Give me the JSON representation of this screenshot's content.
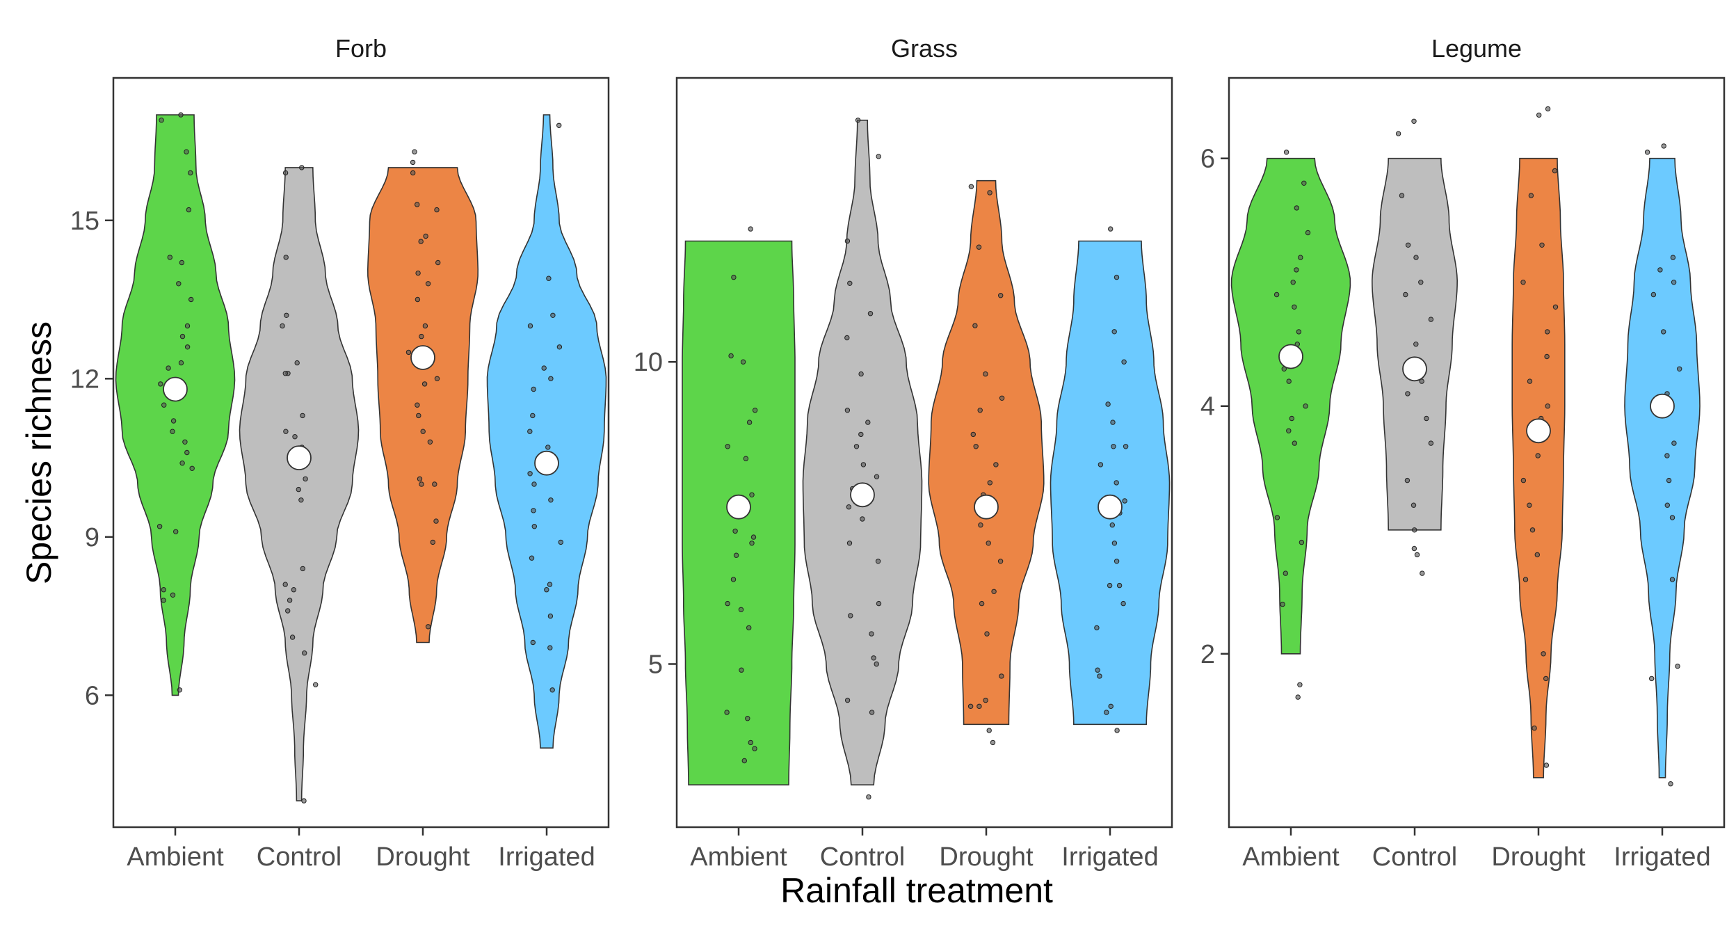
{
  "chart_data": {
    "type": "violin",
    "x_label": "Rainfall treatment",
    "y_label": "Species richness",
    "categories": [
      "Ambient",
      "Control",
      "Drought",
      "Irrigated"
    ],
    "colors": {
      "Ambient": "#5dd54a",
      "Control": "#bebebe",
      "Drought": "#ec8545",
      "Irrigated": "#6ccaff"
    },
    "panels": [
      {
        "title": "Forb",
        "ylim": [
          3.5,
          17.7
        ],
        "yticks": [
          6,
          9,
          12,
          15
        ],
        "groups": [
          {
            "category": "Ambient",
            "min": 6,
            "max": 17,
            "mean": 11.8,
            "density": [
              [
                6,
                0.05
              ],
              [
                7,
                0.14
              ],
              [
                8,
                0.24
              ],
              [
                9,
                0.38
              ],
              [
                10,
                0.6
              ],
              [
                11,
                0.85
              ],
              [
                12,
                0.95
              ],
              [
                13,
                0.85
              ],
              [
                14,
                0.65
              ],
              [
                15,
                0.48
              ],
              [
                16,
                0.33
              ],
              [
                17,
                0.3
              ]
            ],
            "points": [
              6.1,
              7.8,
              7.9,
              8.0,
              9.1,
              9.2,
              10.3,
              10.4,
              10.6,
              10.8,
              11.0,
              11.2,
              11.5,
              11.9,
              12.2,
              12.3,
              12.6,
              12.8,
              13.0,
              13.5,
              13.8,
              14.2,
              14.3,
              15.2,
              15.9,
              16.3,
              16.9,
              17.0
            ]
          },
          {
            "category": "Control",
            "min": 4,
            "max": 16,
            "mean": 10.5,
            "density": [
              [
                4,
                0.04
              ],
              [
                5,
                0.07
              ],
              [
                6,
                0.12
              ],
              [
                7,
                0.22
              ],
              [
                8,
                0.38
              ],
              [
                9,
                0.6
              ],
              [
                10,
                0.85
              ],
              [
                11,
                0.95
              ],
              [
                12,
                0.85
              ],
              [
                13,
                0.62
              ],
              [
                14,
                0.42
              ],
              [
                15,
                0.26
              ],
              [
                16,
                0.22
              ]
            ],
            "points": [
              4.0,
              6.2,
              6.8,
              7.1,
              7.6,
              7.8,
              8.0,
              8.1,
              8.4,
              9.7,
              9.9,
              10.1,
              10.4,
              10.7,
              10.9,
              11.0,
              11.3,
              12.1,
              12.1,
              12.3,
              13.0,
              13.2,
              14.3,
              15.9,
              16.0
            ]
          },
          {
            "category": "Drought",
            "min": 7,
            "max": 16,
            "mean": 12.4,
            "density": [
              [
                7,
                0.1
              ],
              [
                8,
                0.22
              ],
              [
                9,
                0.38
              ],
              [
                10,
                0.55
              ],
              [
                11,
                0.68
              ],
              [
                12,
                0.72
              ],
              [
                13,
                0.75
              ],
              [
                14,
                0.88
              ],
              [
                15,
                0.85
              ],
              [
                16,
                0.55
              ]
            ],
            "points": [
              7.3,
              8.9,
              9.3,
              10.0,
              10.0,
              10.1,
              10.8,
              11.0,
              11.3,
              11.5,
              11.9,
              12.0,
              12.3,
              12.5,
              12.8,
              13.0,
              13.5,
              13.8,
              14.0,
              14.2,
              14.6,
              14.7,
              15.2,
              15.3,
              15.9,
              16.1,
              16.3
            ]
          },
          {
            "category": "Irrigated",
            "min": 5,
            "max": 17,
            "mean": 10.4,
            "density": [
              [
                5,
                0.1
              ],
              [
                6,
                0.2
              ],
              [
                7,
                0.35
              ],
              [
                8,
                0.5
              ],
              [
                9,
                0.65
              ],
              [
                10,
                0.82
              ],
              [
                11,
                0.92
              ],
              [
                12,
                0.95
              ],
              [
                13,
                0.8
              ],
              [
                14,
                0.48
              ],
              [
                15,
                0.2
              ],
              [
                16,
                0.1
              ],
              [
                17,
                0.05
              ]
            ],
            "points": [
              6.1,
              6.9,
              7.0,
              7.5,
              8.0,
              8.1,
              8.6,
              8.9,
              9.2,
              9.5,
              9.7,
              10.0,
              10.2,
              10.5,
              10.7,
              11.0,
              11.3,
              11.8,
              12.0,
              12.2,
              12.6,
              13.0,
              13.2,
              13.9,
              16.8
            ]
          }
        ]
      },
      {
        "title": "Grass",
        "ylim": [
          2.3,
          14.7
        ],
        "yticks": [
          5,
          10
        ],
        "groups": [
          {
            "category": "Ambient",
            "min": 3,
            "max": 12,
            "mean": 7.6,
            "density": [
              [
                3,
                0.8
              ],
              [
                4,
                0.82
              ],
              [
                5,
                0.85
              ],
              [
                6,
                0.88
              ],
              [
                7,
                0.9
              ],
              [
                8,
                0.9
              ],
              [
                9,
                0.9
              ],
              [
                10,
                0.9
              ],
              [
                11,
                0.88
              ],
              [
                12,
                0.85
              ]
            ],
            "points": [
              3.4,
              3.6,
              3.7,
              4.1,
              4.2,
              4.9,
              5.6,
              5.9,
              6.0,
              6.4,
              6.8,
              7.0,
              7.1,
              7.2,
              7.5,
              7.8,
              8.4,
              8.6,
              9.0,
              9.2,
              10.0,
              10.1,
              11.4,
              12.2
            ]
          },
          {
            "category": "Control",
            "min": 3,
            "max": 14,
            "mean": 7.8,
            "density": [
              [
                3,
                0.18
              ],
              [
                4,
                0.36
              ],
              [
                5,
                0.58
              ],
              [
                6,
                0.8
              ],
              [
                7,
                0.93
              ],
              [
                8,
                0.95
              ],
              [
                9,
                0.88
              ],
              [
                10,
                0.7
              ],
              [
                11,
                0.45
              ],
              [
                12,
                0.25
              ],
              [
                13,
                0.12
              ],
              [
                14,
                0.08
              ]
            ],
            "points": [
              2.8,
              4.2,
              4.4,
              5.0,
              5.1,
              5.5,
              5.8,
              6.0,
              6.7,
              7.0,
              7.4,
              7.6,
              7.9,
              8.1,
              8.3,
              8.6,
              8.8,
              9.0,
              9.2,
              9.8,
              10.4,
              10.8,
              11.3,
              12.0,
              13.4,
              14.0
            ]
          },
          {
            "category": "Drought",
            "min": 4,
            "max": 13,
            "mean": 7.6,
            "density": [
              [
                4,
                0.36
              ],
              [
                5,
                0.38
              ],
              [
                6,
                0.52
              ],
              [
                7,
                0.75
              ],
              [
                8,
                0.92
              ],
              [
                9,
                0.88
              ],
              [
                10,
                0.7
              ],
              [
                11,
                0.45
              ],
              [
                12,
                0.25
              ],
              [
                13,
                0.15
              ]
            ],
            "points": [
              3.7,
              3.9,
              4.3,
              4.3,
              4.4,
              4.8,
              5.5,
              6.0,
              6.2,
              6.7,
              7.0,
              7.3,
              7.6,
              7.8,
              8.0,
              8.3,
              8.6,
              8.8,
              9.2,
              9.4,
              9.8,
              10.6,
              11.1,
              11.9,
              12.8,
              12.9
            ]
          },
          {
            "category": "Irrigated",
            "min": 4,
            "max": 12,
            "mean": 7.6,
            "density": [
              [
                4,
                0.58
              ],
              [
                5,
                0.65
              ],
              [
                6,
                0.78
              ],
              [
                7,
                0.92
              ],
              [
                8,
                0.95
              ],
              [
                9,
                0.85
              ],
              [
                10,
                0.7
              ],
              [
                11,
                0.58
              ],
              [
                12,
                0.5
              ]
            ],
            "points": [
              3.9,
              4.2,
              4.3,
              4.8,
              4.9,
              5.6,
              6.0,
              6.3,
              6.3,
              6.7,
              7.0,
              7.3,
              7.5,
              7.7,
              8.0,
              8.3,
              8.6,
              8.6,
              9.0,
              9.3,
              10.0,
              10.5,
              11.4,
              12.2
            ]
          }
        ]
      },
      {
        "title": "Legume",
        "ylim": [
          0.6,
          6.65
        ],
        "yticks": [
          2,
          4,
          6
        ],
        "groups": [
          {
            "category": "Ambient",
            "min": 2,
            "max": 6,
            "mean": 4.4,
            "density": [
              [
                2,
                0.15
              ],
              [
                2.5,
                0.18
              ],
              [
                3,
                0.26
              ],
              [
                3.5,
                0.45
              ],
              [
                4,
                0.62
              ],
              [
                4.5,
                0.8
              ],
              [
                5,
                0.95
              ],
              [
                5.5,
                0.7
              ],
              [
                6,
                0.38
              ]
            ],
            "points": [
              1.65,
              1.75,
              2.4,
              2.65,
              2.9,
              3.1,
              3.7,
              3.8,
              3.9,
              4.0,
              4.2,
              4.3,
              4.5,
              4.6,
              4.8,
              4.9,
              5.0,
              5.1,
              5.2,
              5.4,
              5.6,
              5.8,
              6.05
            ]
          },
          {
            "category": "Control",
            "min": 3,
            "max": 6,
            "mean": 4.3,
            "density": [
              [
                3,
                0.42
              ],
              [
                3.5,
                0.45
              ],
              [
                4,
                0.5
              ],
              [
                4.5,
                0.6
              ],
              [
                5,
                0.68
              ],
              [
                5.5,
                0.55
              ],
              [
                6,
                0.42
              ]
            ],
            "points": [
              2.65,
              2.8,
              2.85,
              3.0,
              3.2,
              3.4,
              3.7,
              3.9,
              4.1,
              4.2,
              4.3,
              4.5,
              4.7,
              4.9,
              5.0,
              5.2,
              5.3,
              5.7,
              6.2,
              6.3
            ]
          },
          {
            "category": "Drought",
            "min": 1,
            "max": 6,
            "mean": 3.8,
            "density": [
              [
                1,
                0.08
              ],
              [
                1.5,
                0.12
              ],
              [
                2,
                0.2
              ],
              [
                2.5,
                0.3
              ],
              [
                3,
                0.38
              ],
              [
                3.5,
                0.4
              ],
              [
                4,
                0.42
              ],
              [
                4.5,
                0.42
              ],
              [
                5,
                0.4
              ],
              [
                5.5,
                0.35
              ],
              [
                6,
                0.3
              ]
            ],
            "points": [
              1.1,
              1.4,
              1.8,
              2.0,
              2.6,
              2.8,
              3.0,
              3.2,
              3.4,
              3.6,
              3.9,
              4.0,
              4.2,
              4.4,
              4.6,
              4.8,
              5.0,
              5.3,
              5.7,
              5.9,
              6.35,
              6.4
            ]
          },
          {
            "category": "Irrigated",
            "min": 1,
            "max": 6,
            "mean": 4.0,
            "density": [
              [
                1,
                0.05
              ],
              [
                1.5,
                0.08
              ],
              [
                2,
                0.12
              ],
              [
                2.5,
                0.22
              ],
              [
                3,
                0.35
              ],
              [
                3.5,
                0.52
              ],
              [
                4,
                0.6
              ],
              [
                4.5,
                0.55
              ],
              [
                5,
                0.45
              ],
              [
                5.5,
                0.3
              ],
              [
                6,
                0.2
              ]
            ],
            "points": [
              0.95,
              1.8,
              1.9,
              2.6,
              3.1,
              3.2,
              3.4,
              3.6,
              3.7,
              4.0,
              4.1,
              4.3,
              4.6,
              4.9,
              5.0,
              5.1,
              5.2,
              6.05,
              6.1
            ]
          }
        ]
      }
    ]
  }
}
